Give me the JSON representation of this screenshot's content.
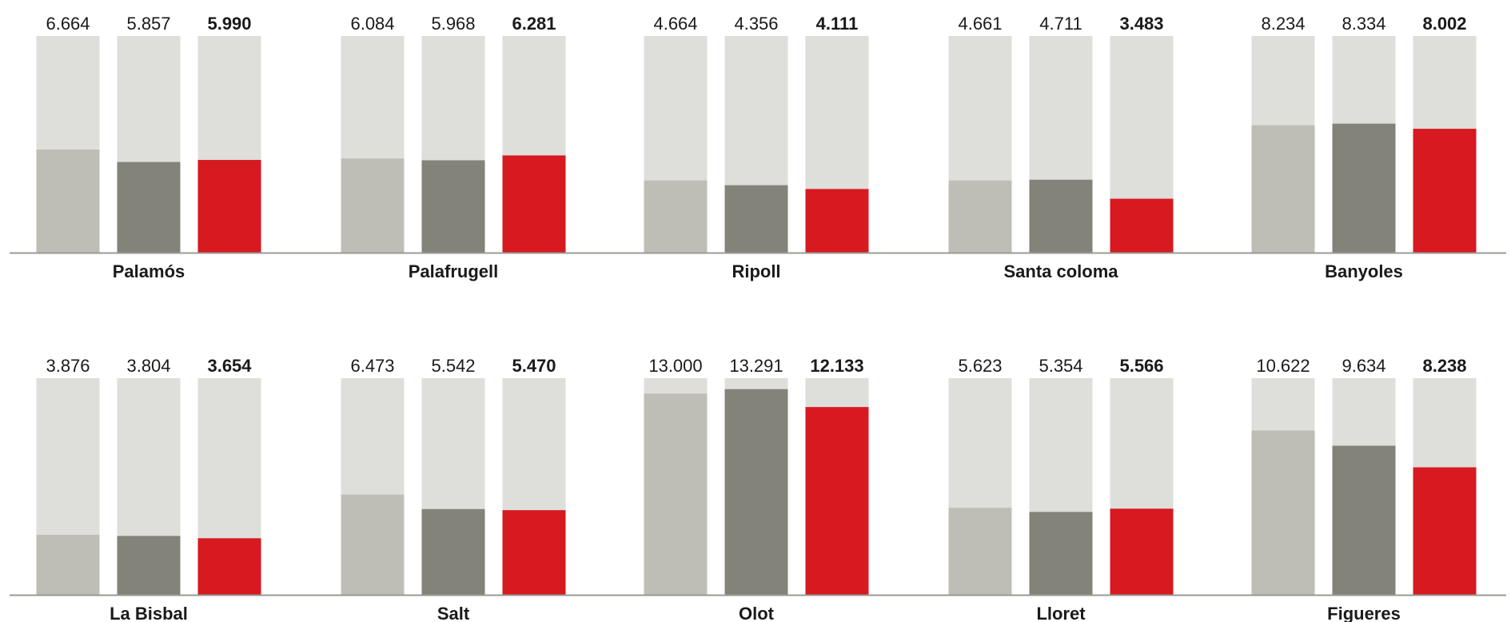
{
  "chart_data": {
    "type": "bar",
    "title": "",
    "ylim": [
      0,
      14000
    ],
    "grid": false,
    "legend": "none",
    "colors": {
      "background_column": "#dededa",
      "series_1": "#bfbeb6",
      "series_2": "#83837a",
      "series_3": "#d71920",
      "baseline": "#9a9a94",
      "label_text": "#1a1a1a"
    },
    "groups": [
      {
        "name": "Palamós",
        "values": [
          6664,
          5857,
          5990
        ],
        "labels": [
          "6.664",
          "5.857",
          "5.990"
        ]
      },
      {
        "name": "Palafrugell",
        "values": [
          6084,
          5968,
          6281
        ],
        "labels": [
          "6.084",
          "5.968",
          "6.281"
        ]
      },
      {
        "name": "Ripoll",
        "values": [
          4664,
          4356,
          4111
        ],
        "labels": [
          "4.664",
          "4.356",
          "4.111"
        ]
      },
      {
        "name": "Santa coloma",
        "values": [
          4661,
          4711,
          3483
        ],
        "labels": [
          "4.661",
          "4.711",
          "3.483"
        ]
      },
      {
        "name": "Banyoles",
        "values": [
          8234,
          8334,
          8002
        ],
        "labels": [
          "8.234",
          "8.334",
          "8.002"
        ]
      },
      {
        "name": "La Bisbal",
        "values": [
          3876,
          3804,
          3654
        ],
        "labels": [
          "3.876",
          "3.804",
          "3.654"
        ]
      },
      {
        "name": "Salt",
        "values": [
          6473,
          5542,
          5470
        ],
        "labels": [
          "6.473",
          "5.542",
          "5.470"
        ]
      },
      {
        "name": "Olot",
        "values": [
          13000,
          13291,
          12133
        ],
        "labels": [
          "13.000",
          "13.291",
          "12.133"
        ]
      },
      {
        "name": "Lloret",
        "values": [
          5623,
          5354,
          5566
        ],
        "labels": [
          "5.623",
          "5.354",
          "5.566"
        ]
      },
      {
        "name": "Figueres",
        "values": [
          10622,
          9634,
          8238
        ],
        "labels": [
          "10.622",
          "9.634",
          "8.238"
        ]
      }
    ]
  }
}
